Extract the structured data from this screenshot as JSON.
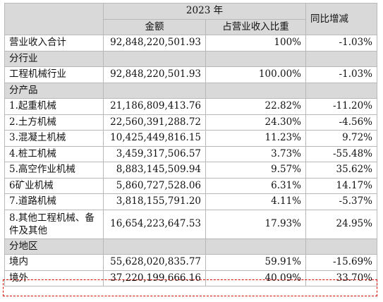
{
  "header": {
    "year": "2023 年",
    "col_amount": "金额",
    "col_share": "占营业收入比重",
    "col_yoy": "同比增减"
  },
  "total": {
    "label": "营业收入合计",
    "amount": "92,848,220,501.93",
    "share": "100%",
    "yoy": "-1.03%"
  },
  "section_industry": "分行业",
  "industry_rows": [
    {
      "label": "工程机械行业",
      "amount": "92,848,220,501.93",
      "share": "100.00%",
      "yoy": "-1.03%"
    }
  ],
  "section_product": "分产品",
  "product_rows": [
    {
      "label": "1.起重机械",
      "amount": "21,186,809,413.76",
      "share": "22.82%",
      "yoy": "-11.20%"
    },
    {
      "label": "2.土方机械",
      "amount": "22,560,391,288.72",
      "share": "24.30%",
      "yoy": "-4.56%"
    },
    {
      "label": "3.混凝土机械",
      "amount": "10,425,449,816.15",
      "share": "11.23%",
      "yoy": "9.72%"
    },
    {
      "label": "4.桩工机械",
      "amount": "3,459,317,506.57",
      "share": "3.73%",
      "yoy": "-55.48%"
    },
    {
      "label": "5.高空作业机械",
      "amount": "8,883,145,509.94",
      "share": "9.57%",
      "yoy": "35.62%"
    },
    {
      "label": "6矿业机械",
      "amount": "5,860,727,528.06",
      "share": "6.31%",
      "yoy": "14.17%"
    },
    {
      "label": "7.道路机械",
      "amount": "3,818,155,791.20",
      "share": "4.11%",
      "yoy": "-5.37%"
    },
    {
      "label": "8.其他工程机械、备件及其他",
      "amount": "16,654,223,647.53",
      "share": "17.93%",
      "yoy": "24.95%"
    }
  ],
  "section_region": "分地区",
  "region_rows": [
    {
      "label": "境内",
      "amount": "55,628,020,835.77",
      "share": "59.91%",
      "yoy": "-15.69%"
    },
    {
      "label": "境外",
      "amount": "37,220,199,666.16",
      "share": "40.09%",
      "yoy": "33.70%"
    }
  ]
}
